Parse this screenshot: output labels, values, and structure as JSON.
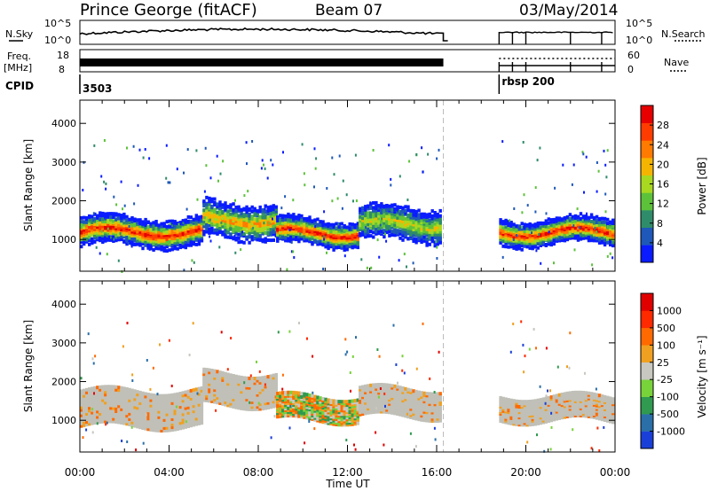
{
  "header": {
    "station": "Prince George (fitACF)",
    "beam": "Beam 07",
    "date": "03/May/2014"
  },
  "status_panels": {
    "noise_label_left": "N.Sky",
    "noise_label_right": "N.Search",
    "noise_ticks": [
      "10^5",
      "10^0"
    ],
    "freq_label": "Freq.",
    "freq_unit": "[MHz]",
    "freq_ticks": [
      "18",
      "8"
    ],
    "nave_label": "Nave",
    "nave_ticks": [
      "60",
      "0"
    ],
    "cpid_label": "CPID",
    "cpid_values": [
      "3503",
      "rbsp 200"
    ],
    "cpid_change_time_h": 18.8
  },
  "colors": {
    "power_scale": [
      "#0a1cff",
      "#1e58b8",
      "#2f8c6a",
      "#5cc23a",
      "#a8d820",
      "#f5b400",
      "#ff7a00",
      "#ff3c00",
      "#e60000"
    ],
    "velocity_scale": [
      "#1a3fd8",
      "#2a6fa8",
      "#2f9a50",
      "#78d23a",
      "#c8c8c0",
      "#f0a020",
      "#ff6a00",
      "#ff2a00",
      "#e00000"
    ],
    "ground_scatter": "#c0c0b8"
  },
  "chart_data": [
    {
      "type": "heatmap",
      "name": "power",
      "ylabel": "Slant Range [km]",
      "xlabel": "Time UT",
      "x_ticks": [
        "00:00",
        "04:00",
        "08:00",
        "12:00",
        "16:00",
        "20:00",
        "00:00"
      ],
      "y_ticks": [
        "1000",
        "2000",
        "3000",
        "4000"
      ],
      "xlim_hours": [
        0,
        24
      ],
      "ylim_km": [
        180,
        4600
      ],
      "colorbar_label": "Power [dB]",
      "colorbar_ticks": [
        "28",
        "24",
        "20",
        "16",
        "12",
        "8",
        "4"
      ],
      "data_gap_hours": [
        16.3,
        18.8
      ],
      "dashed_marker_hour": 16.3,
      "echo_bands": [
        {
          "t0": 0.0,
          "t1": 5.5,
          "center_km": 1200,
          "width_km": 550,
          "peak_db": 28
        },
        {
          "t0": 5.5,
          "t1": 8.8,
          "center_km": 1500,
          "width_km": 700,
          "peak_db": 20
        },
        {
          "t0": 8.8,
          "t1": 12.5,
          "center_km": 1180,
          "width_km": 500,
          "peak_db": 28
        },
        {
          "t0": 12.5,
          "t1": 16.2,
          "center_km": 1400,
          "width_km": 650,
          "peak_db": 16
        },
        {
          "t0": 18.8,
          "t1": 24.0,
          "center_km": 1200,
          "width_km": 500,
          "peak_db": 28
        }
      ]
    },
    {
      "type": "heatmap",
      "name": "velocity",
      "ylabel": "Slant Range [km]",
      "xlabel": "Time UT",
      "x_ticks": [
        "00:00",
        "04:00",
        "08:00",
        "12:00",
        "16:00",
        "20:00",
        "00:00"
      ],
      "y_ticks": [
        "1000",
        "2000",
        "3000",
        "4000"
      ],
      "xlim_hours": [
        0,
        24
      ],
      "ylim_km": [
        180,
        4600
      ],
      "colorbar_label": "Velocity [m s⁻¹]",
      "colorbar_ticks": [
        "1000",
        "500",
        "100",
        "25",
        "-25",
        "-100",
        "-500",
        "-1000"
      ],
      "data_gap_hours": [
        16.3,
        18.8
      ],
      "dashed_marker_hour": 16.3,
      "echo_bands": [
        {
          "t0": 0.0,
          "t1": 5.5,
          "center_km": 1300,
          "width_km": 900,
          "kind": "ground"
        },
        {
          "t0": 5.5,
          "t1": 8.8,
          "center_km": 1800,
          "width_km": 800,
          "kind": "ground"
        },
        {
          "t0": 8.8,
          "t1": 12.5,
          "center_km": 1300,
          "width_km": 600,
          "kind": "ionospheric"
        },
        {
          "t0": 12.5,
          "t1": 16.2,
          "center_km": 1450,
          "width_km": 700,
          "kind": "ground"
        },
        {
          "t0": 18.8,
          "t1": 24.0,
          "center_km": 1300,
          "width_km": 600,
          "kind": "ground"
        }
      ]
    }
  ]
}
